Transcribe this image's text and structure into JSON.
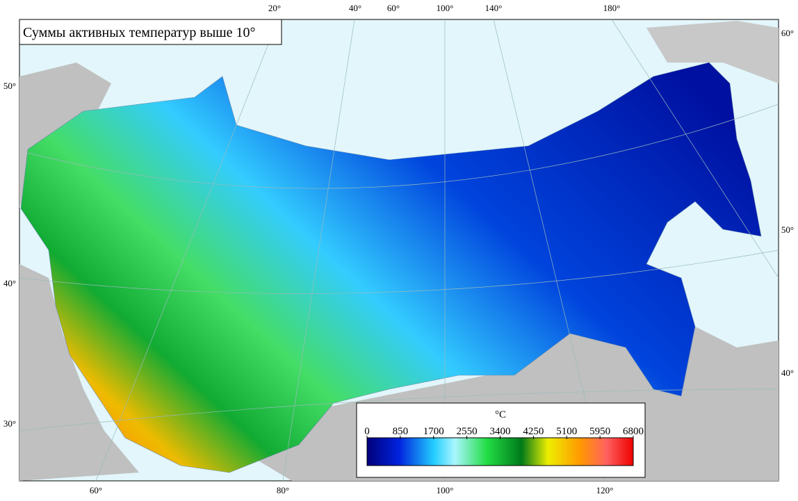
{
  "title": "Суммы активных температур выше 10°",
  "graticule": {
    "top": [
      "20°",
      "40°",
      "60°",
      "100°",
      "140°",
      "180°"
    ],
    "bottom": [
      "60°",
      "80°",
      "100°",
      "120°"
    ],
    "left": [
      "50°",
      "40°",
      "30°"
    ],
    "right": [
      "60°",
      "50°",
      "40°"
    ]
  },
  "legend": {
    "unit": "°C",
    "ticks": [
      0,
      850,
      1700,
      2550,
      3400,
      4250,
      5100,
      5950,
      6800
    ]
  }
}
